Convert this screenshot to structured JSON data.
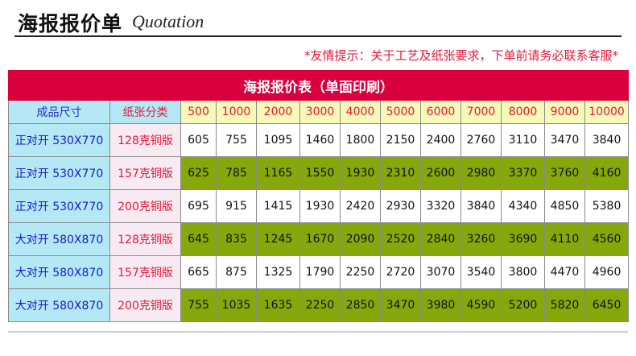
{
  "header": {
    "title_cn": "海报报价单",
    "title_en": "Quotation"
  },
  "notice": "*友情提示：关于工艺及纸张要求，下单前请务必联系客服*",
  "table": {
    "banner": "海报报价表（单面印刷）",
    "col_size_header": "成品尺寸",
    "col_paper_header": "纸张分类",
    "quantities": [
      "500",
      "1000",
      "2000",
      "3000",
      "4000",
      "5000",
      "6000",
      "7000",
      "8000",
      "9000",
      "10000"
    ],
    "rows": [
      {
        "size": "正对开 530X770",
        "paper": "128克铜版",
        "highlight": false,
        "prices": [
          "605",
          "755",
          "1095",
          "1460",
          "1800",
          "2150",
          "2400",
          "2760",
          "3110",
          "3470",
          "3840"
        ]
      },
      {
        "size": "正对开 530X770",
        "paper": "157克铜版",
        "highlight": true,
        "prices": [
          "625",
          "785",
          "1165",
          "1550",
          "1930",
          "2310",
          "2600",
          "2980",
          "3370",
          "3760",
          "4160"
        ]
      },
      {
        "size": "正对开 530X770",
        "paper": "200克铜版",
        "highlight": false,
        "prices": [
          "695",
          "915",
          "1415",
          "1930",
          "2420",
          "2930",
          "3320",
          "3840",
          "4340",
          "4850",
          "5380"
        ]
      },
      {
        "size": "大对开 580X870",
        "paper": "128克铜版",
        "highlight": true,
        "prices": [
          "645",
          "835",
          "1245",
          "1670",
          "2090",
          "2520",
          "2840",
          "3260",
          "3690",
          "4110",
          "4560"
        ]
      },
      {
        "size": "大对开 580X870",
        "paper": "157克铜版",
        "highlight": false,
        "prices": [
          "665",
          "875",
          "1325",
          "1790",
          "2250",
          "2720",
          "3070",
          "3540",
          "3800",
          "4470",
          "4960"
        ]
      },
      {
        "size": "大对开 580X870",
        "paper": "200克铜版",
        "highlight": true,
        "prices": [
          "755",
          "1035",
          "1635",
          "2250",
          "2850",
          "3470",
          "3980",
          "4590",
          "5200",
          "5820",
          "6450"
        ]
      }
    ]
  },
  "colors": {
    "banner": "#d9003e",
    "header_cell": "#b3e8f4",
    "quantity_cell": "#f6f9b8",
    "highlight_row": "#86a80a",
    "notice_text": "#e8183a"
  }
}
